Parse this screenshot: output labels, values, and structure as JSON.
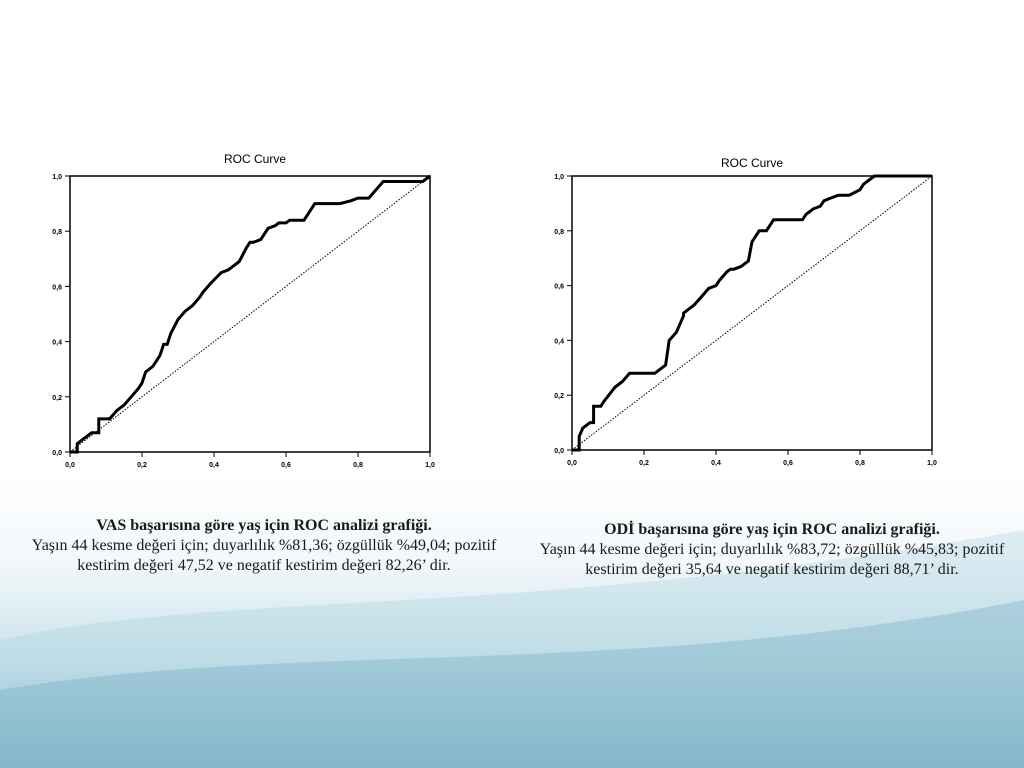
{
  "theme": {
    "line_color": "#000000",
    "axis_color": "#000000",
    "text_color": "#1a1a1a"
  },
  "chart_data": [
    {
      "type": "line",
      "title": "ROC Curve",
      "xlabel": "",
      "ylabel": "",
      "xlim": [
        0,
        1
      ],
      "ylim": [
        0,
        1
      ],
      "x_ticks": [
        "0,0",
        "0,2",
        "0,4",
        "0,6",
        "0,8",
        "1,0"
      ],
      "y_ticks": [
        "0,0",
        "0,2",
        "0,4",
        "0,6",
        "0,8",
        "1,0"
      ],
      "grid": false,
      "legend": "none",
      "series": [
        {
          "style": "solid",
          "x": [
            0.0,
            0.02,
            0.02,
            0.04,
            0.06,
            0.08,
            0.08,
            0.11,
            0.13,
            0.15,
            0.17,
            0.19,
            0.2,
            0.21,
            0.23,
            0.24,
            0.25,
            0.26,
            0.27,
            0.28,
            0.3,
            0.32,
            0.34,
            0.36,
            0.37,
            0.39,
            0.42,
            0.44,
            0.45,
            0.46,
            0.47,
            0.49,
            0.5,
            0.51,
            0.53,
            0.55,
            0.57,
            0.58,
            0.6,
            0.61,
            0.62,
            0.65,
            0.68,
            0.71,
            0.75,
            0.78,
            0.8,
            0.83,
            0.85,
            0.87,
            0.88,
            0.9,
            0.92,
            0.95,
            0.98,
            1.0
          ],
          "y": [
            0.0,
            0.0,
            0.03,
            0.05,
            0.07,
            0.07,
            0.12,
            0.12,
            0.15,
            0.17,
            0.2,
            0.23,
            0.25,
            0.29,
            0.31,
            0.33,
            0.35,
            0.39,
            0.39,
            0.43,
            0.48,
            0.51,
            0.53,
            0.56,
            0.58,
            0.61,
            0.65,
            0.66,
            0.67,
            0.68,
            0.69,
            0.74,
            0.76,
            0.76,
            0.77,
            0.81,
            0.82,
            0.83,
            0.83,
            0.84,
            0.84,
            0.84,
            0.9,
            0.9,
            0.9,
            0.91,
            0.92,
            0.92,
            0.95,
            0.98,
            0.98,
            0.98,
            0.98,
            0.98,
            0.98,
            1.0
          ]
        },
        {
          "style": "dotted",
          "x": [
            0,
            1
          ],
          "y": [
            0,
            1
          ]
        }
      ]
    },
    {
      "type": "line",
      "title": "ROC Curve",
      "xlabel": "",
      "ylabel": "",
      "xlim": [
        0,
        1
      ],
      "ylim": [
        0,
        1
      ],
      "x_ticks": [
        "0,0",
        "0,2",
        "0,4",
        "0,6",
        "0,8",
        "1,0"
      ],
      "y_ticks": [
        "0,0",
        "0,2",
        "0,4",
        "0,6",
        "0,8",
        "1,0"
      ],
      "grid": false,
      "legend": "none",
      "series": [
        {
          "style": "solid",
          "x": [
            0.0,
            0.02,
            0.02,
            0.03,
            0.05,
            0.06,
            0.06,
            0.08,
            0.09,
            0.12,
            0.14,
            0.16,
            0.17,
            0.2,
            0.23,
            0.26,
            0.27,
            0.27,
            0.29,
            0.31,
            0.31,
            0.34,
            0.36,
            0.38,
            0.4,
            0.41,
            0.43,
            0.44,
            0.45,
            0.47,
            0.49,
            0.5,
            0.51,
            0.52,
            0.54,
            0.56,
            0.58,
            0.6,
            0.62,
            0.64,
            0.65,
            0.67,
            0.69,
            0.7,
            0.72,
            0.74,
            0.77,
            0.8,
            0.81,
            0.84,
            0.87,
            0.9,
            0.93,
            0.95,
            0.97,
            1.0
          ],
          "y": [
            0.0,
            0.0,
            0.05,
            0.08,
            0.1,
            0.1,
            0.16,
            0.16,
            0.18,
            0.23,
            0.25,
            0.28,
            0.28,
            0.28,
            0.28,
            0.31,
            0.4,
            0.4,
            0.43,
            0.49,
            0.5,
            0.53,
            0.56,
            0.59,
            0.6,
            0.62,
            0.65,
            0.66,
            0.66,
            0.67,
            0.69,
            0.76,
            0.78,
            0.8,
            0.8,
            0.84,
            0.84,
            0.84,
            0.84,
            0.84,
            0.86,
            0.88,
            0.89,
            0.91,
            0.92,
            0.93,
            0.93,
            0.95,
            0.97,
            1.0,
            1.0,
            1.0,
            1.0,
            1.0,
            1.0,
            1.0
          ]
        },
        {
          "style": "dotted",
          "x": [
            0,
            1
          ],
          "y": [
            0,
            1
          ]
        }
      ]
    }
  ],
  "captions": {
    "left": {
      "title": "VAS başarısına göre yaş için ROC analizi grafiği.",
      "body": "Yaşın 44 kesme değeri için; duyarlılık %81,36; özgüllük %49,04; pozitif kestirim değeri 47,52 ve negatif kestirim değeri 82,26’ dir."
    },
    "right": {
      "title": "ODİ başarısına göre yaş için ROC analizi grafiği.",
      "body": "Yaşın 44 kesme değeri için; duyarlılık %83,72; özgüllük %45,83; pozitif kestirim değeri 35,64 ve negatif kestirim değeri 88,71’ dir."
    }
  }
}
